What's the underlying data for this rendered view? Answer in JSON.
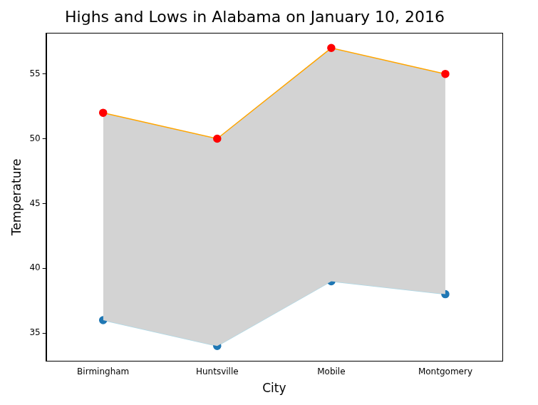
{
  "chart_data": {
    "type": "line",
    "title": "Highs and Lows in Alabama on January 10, 2016",
    "x_label": "City",
    "y_label": "Temperature",
    "categories": [
      "Birmingham",
      "Huntsville",
      "Mobile",
      "Montgomery"
    ],
    "series": [
      {
        "color": "#add8e6",
        "marker": "circle",
        "values": [
          36,
          34,
          39,
          38
        ]
      },
      {
        "color": "#ffa500",
        "marker": "circle",
        "values": [
          52,
          50,
          57,
          55
        ]
      }
    ],
    "ylim": [
      32.85,
      58.15
    ],
    "yticks": [
      35,
      40,
      45,
      50,
      55
    ],
    "grid": false
  }
}
